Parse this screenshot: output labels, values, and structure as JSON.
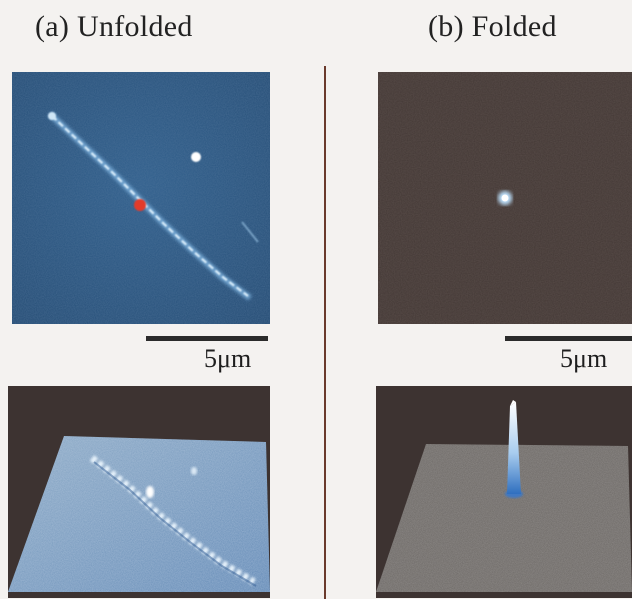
{
  "panels": {
    "a": {
      "title": "(a) Unfolded",
      "scale_label": "5μm"
    },
    "b": {
      "title": "(b) Folded",
      "scale_label": "5μm"
    }
  },
  "colors": {
    "unfolded_background": "#2c5a86",
    "unfolded_strand": "#cfe6f6",
    "unfolded_marker": "#e23a2c",
    "folded_background": "#433835",
    "folded_spot": "#ffffff",
    "surface_gray": "#6b6764",
    "surface_blue": "#5a8fc8"
  }
}
